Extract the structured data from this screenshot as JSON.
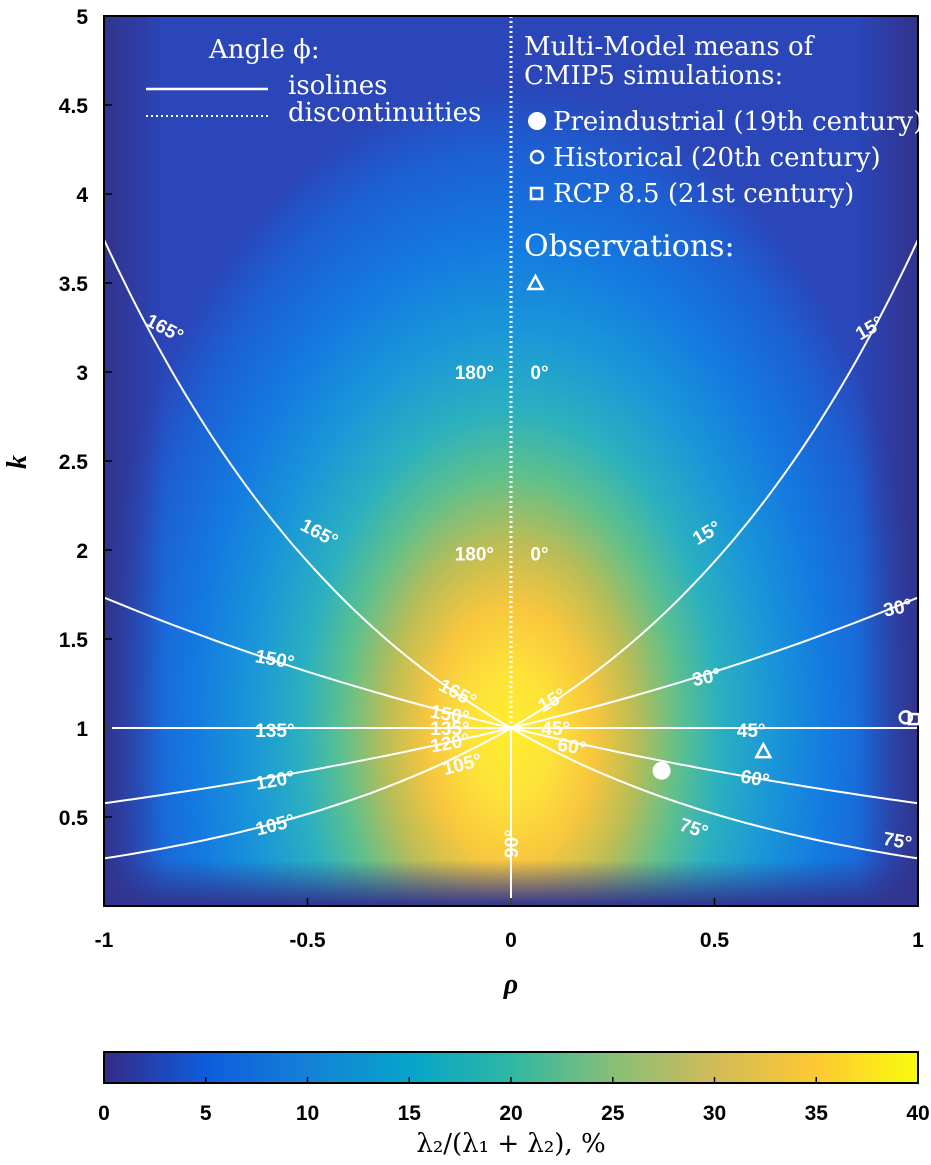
{
  "chart_data": {
    "type": "heatmap",
    "xlabel": "ρ",
    "ylabel": "k",
    "xlim": [
      -1,
      1
    ],
    "ylim": [
      0,
      5
    ],
    "x_ticks": [
      "-1",
      "-0.5",
      "0",
      "0.5",
      "1"
    ],
    "y_ticks": [
      "0.5",
      "1",
      "1.5",
      "2",
      "2.5",
      "3",
      "3.5",
      "4",
      "4.5",
      "5"
    ],
    "colorbar": {
      "label": "λ₂/(λ₁ + λ₂),  %",
      "range": [
        0,
        40
      ],
      "ticks": [
        "0",
        "5",
        "10",
        "15",
        "20",
        "25",
        "30",
        "35",
        "40"
      ]
    },
    "legend_left": {
      "title": "Angle ϕ:",
      "items": [
        "isolines",
        "discontinuities"
      ]
    },
    "legend_right": {
      "title_line1": "Multi-Model means of",
      "title_line2": "CMIP5 simulations:",
      "items": [
        "Preindustrial (19th century)",
        "Historical (20th century)",
        "RCP 8.5 (21st century)"
      ],
      "obs_title": "Observations:"
    },
    "isolines_deg": [
      15,
      30,
      45,
      60,
      75,
      90,
      105,
      120,
      135,
      150,
      165
    ],
    "isoline_labels": {
      "deg15": "15°",
      "deg30": "30°",
      "deg45": "45°",
      "deg60": "60°",
      "deg75": "75°",
      "deg90": "90°",
      "deg105": "105°",
      "deg120": "120°",
      "deg135": "135°",
      "deg150": "150°",
      "deg165": "165°",
      "deg180": "180°",
      "deg0": "0°"
    },
    "points": {
      "preindustrial": {
        "rho": 0.37,
        "k": 0.76
      },
      "historical": {
        "rho": 0.97,
        "k": 1.06
      },
      "rcp85": {
        "rho": 0.99,
        "k": 1.05
      },
      "observations": [
        {
          "rho": 0.06,
          "k": 3.5
        },
        {
          "rho": 0.62,
          "k": 0.87
        }
      ]
    }
  }
}
